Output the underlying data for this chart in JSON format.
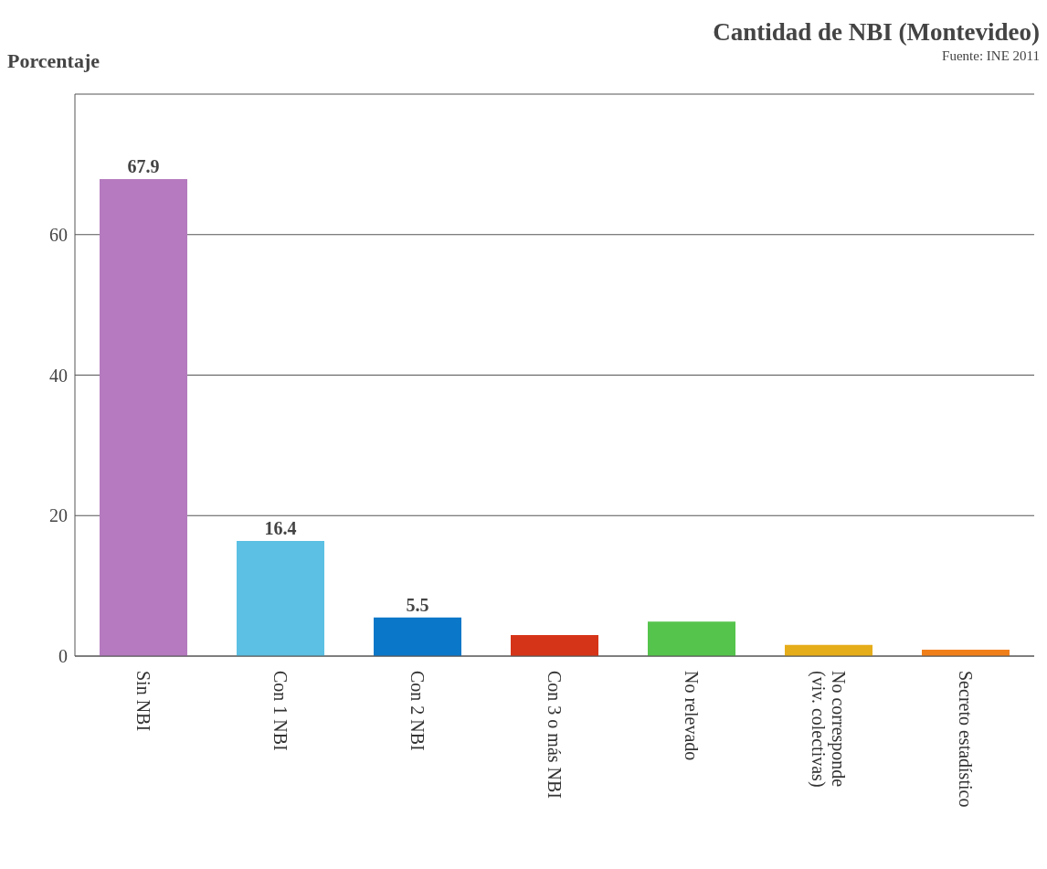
{
  "chart_data": {
    "type": "bar",
    "title": "Cantidad de NBI (Montevideo)",
    "annotations": [
      "Fuente: INE 2011"
    ],
    "ylabel": "Porcentaje",
    "categories": [
      "Sin NBI",
      "Con 1 NBI",
      "Con 2 NBI",
      "Con 3 o más NBI",
      "No relevado",
      "No corresponde (viv. colectivas)",
      "Secreto estadístico"
    ],
    "values": [
      67.9,
      16.4,
      5.5,
      3.0,
      4.9,
      1.6,
      0.9
    ],
    "value_labels": [
      "67.9",
      "16.4",
      "5.5",
      null,
      null,
      null,
      null
    ],
    "colors": [
      "#b57abf",
      "#5bc0e3",
      "#0a77c9",
      "#d63418",
      "#55c44c",
      "#e6ad1a",
      "#f07f1a"
    ],
    "ylim": [
      0,
      80
    ],
    "yticks": [
      0,
      20,
      40,
      60
    ],
    "grid": "y"
  }
}
